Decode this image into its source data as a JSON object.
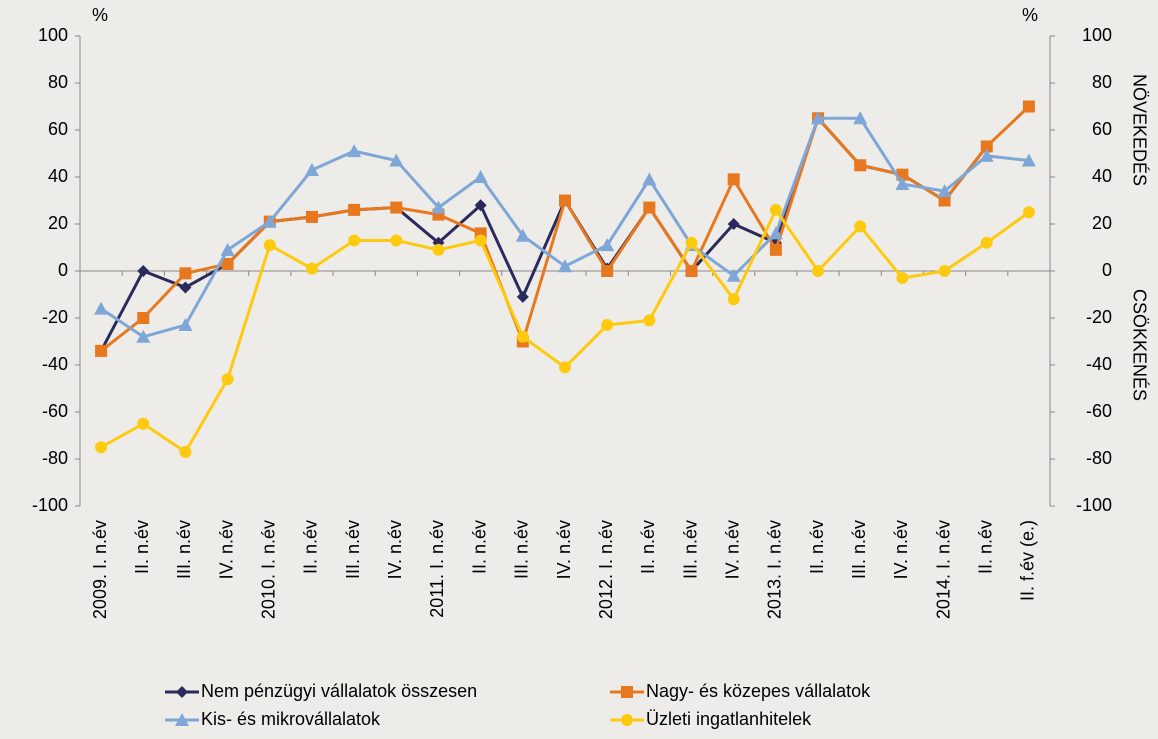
{
  "chart_data": {
    "type": "line",
    "y_unit_label": "%",
    "y2_unit_label": "%",
    "y2_annotations": [
      "NÖVEKEDÉS",
      "CSÖKKENÉS"
    ],
    "categories": [
      "2009. I. n.év",
      "II. n.év",
      "III. n.év",
      "IV. n.év",
      "2010. I. n.év",
      "II. n.év",
      "III. n.év",
      "IV. n.év",
      "2011. I. n.év",
      "II. n.év",
      "III. n.év",
      "IV. n.év",
      "2012. I. n.év",
      "II. n.év",
      "III. n.év",
      "IV. n.év",
      "2013. I. n.év",
      "II. n.év",
      "III. n.év",
      "IV. n.év",
      "2014. I. n.év",
      "II. n.év",
      "II. f.év (e.)"
    ],
    "series": [
      {
        "name": "Nem pénzügyi vállalatok összesen",
        "color": "#2b2a5c",
        "marker": "diamond",
        "values": [
          -34,
          0,
          -7,
          3,
          21,
          23,
          26,
          27,
          12,
          28,
          -11,
          30,
          1,
          27,
          0,
          20,
          12,
          65,
          45,
          41,
          30,
          53,
          null
        ]
      },
      {
        "name": "Nagy- és közepes vállalatok",
        "color": "#e8781e",
        "marker": "square",
        "values": [
          -34,
          -20,
          -1,
          3,
          21,
          23,
          26,
          27,
          24,
          16,
          -30,
          30,
          0,
          27,
          0,
          39,
          9,
          65,
          45,
          41,
          30,
          53,
          70
        ]
      },
      {
        "name": "Kis- és mikrovállalatok",
        "color": "#7ea6d6",
        "marker": "triangle",
        "values": [
          -16,
          -28,
          -23,
          9,
          21,
          43,
          51,
          47,
          27,
          40,
          15,
          2,
          11,
          39,
          11,
          -2,
          16,
          65,
          65,
          37,
          34,
          49,
          47
        ]
      },
      {
        "name": "Üzleti ingatlanhitelek",
        "color": "#fdca10",
        "marker": "circle",
        "values": [
          -75,
          -65,
          -77,
          -46,
          11,
          1,
          13,
          13,
          9,
          13,
          -28,
          -41,
          -23,
          -21,
          12,
          -12,
          26,
          0,
          19,
          -3,
          0,
          12,
          25
        ]
      }
    ],
    "ylim": [
      -100,
      100
    ],
    "yticks": [
      -100,
      -80,
      -60,
      -40,
      -20,
      0,
      20,
      40,
      60,
      80,
      100
    ],
    "y2lim": [
      -100,
      100
    ],
    "y2ticks": [
      -100,
      -80,
      -60,
      -40,
      -20,
      0,
      20,
      40,
      60,
      80,
      100
    ],
    "grid": false
  }
}
